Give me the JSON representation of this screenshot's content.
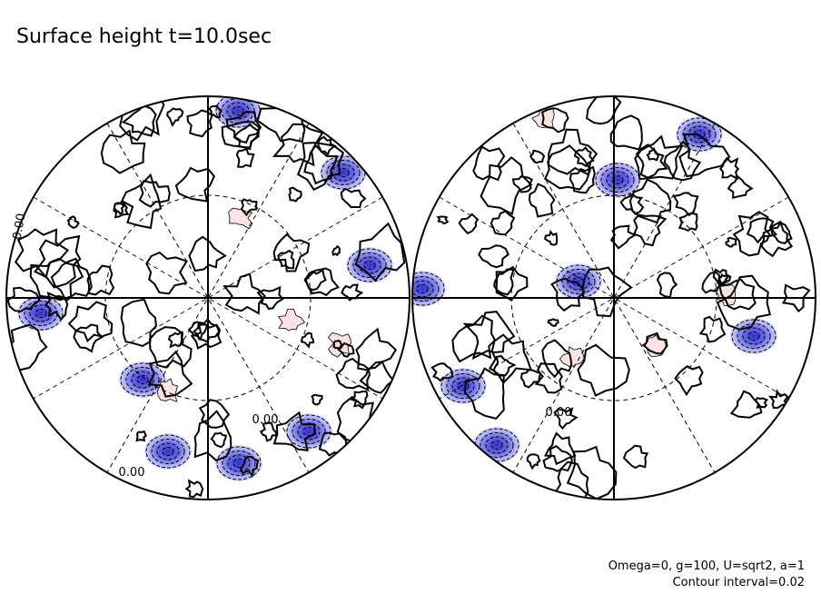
{
  "title": "Surface height t=10.0sec",
  "contour_labels": [
    "0.00",
    "0.00",
    "0.00",
    "0.00"
  ],
  "notes": [
    "Omega=0, g=100, U=sqrt2, a=1",
    "Contour interval=0.02"
  ]
}
